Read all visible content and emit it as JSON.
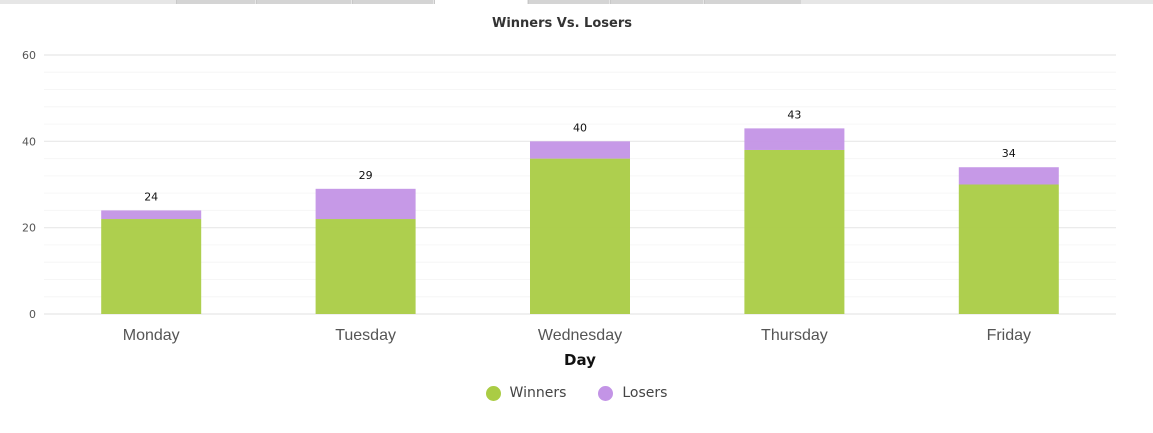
{
  "colors": {
    "winners": "#aacc44",
    "losers": "#c394e6",
    "grid": "#e8e8e8",
    "minor_grid": "#f6f6f6"
  },
  "chart_data": {
    "type": "bar",
    "stacked": true,
    "title": "Winners Vs. Losers",
    "xlabel": "Day",
    "ylabel": "",
    "ylim": [
      0,
      60
    ],
    "yticks": [
      "0",
      "20",
      "40",
      "60"
    ],
    "categories": [
      "Monday",
      "Tuesday",
      "Wednesday",
      "Thursday",
      "Friday"
    ],
    "series": [
      {
        "name": "Winners",
        "values": [
          22,
          22,
          36,
          38,
          30
        ]
      },
      {
        "name": "Losers",
        "values": [
          2,
          7,
          4,
          5,
          4
        ]
      }
    ],
    "totals": [
      "24",
      "29",
      "40",
      "43",
      "34"
    ],
    "legend_position": "bottom",
    "grid": true
  }
}
